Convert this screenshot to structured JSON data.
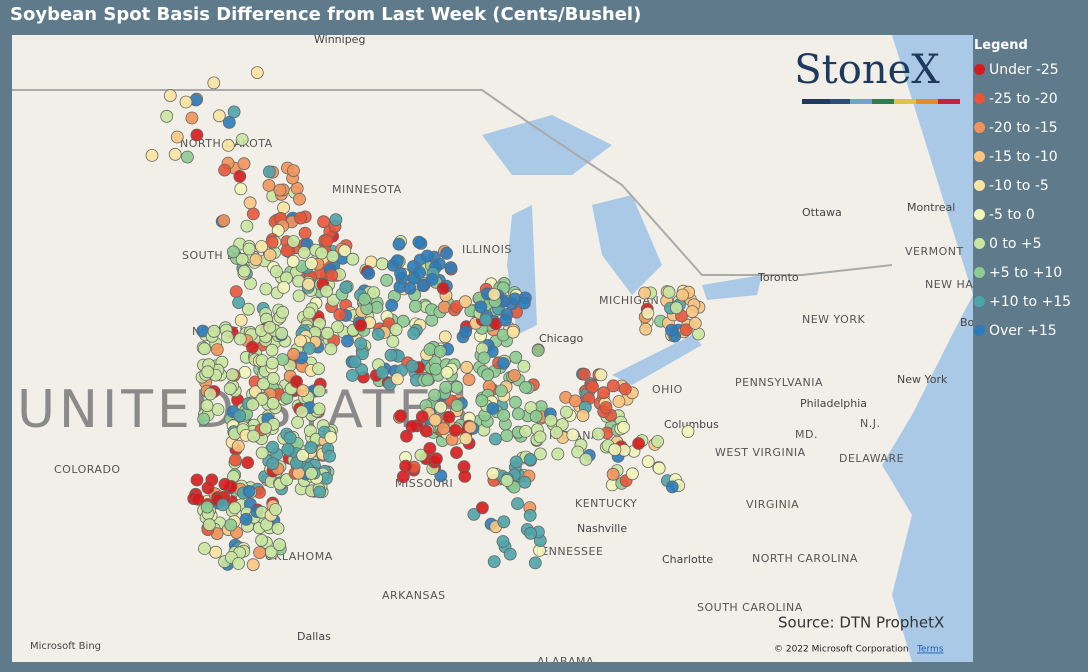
{
  "title": "Soybean Spot Basis Difference from Last Week (Cents/Bushel)",
  "legend": {
    "title": "Legend",
    "items": [
      {
        "label": "Under -25",
        "color": "#d7191c"
      },
      {
        "label": "-25 to -20",
        "color": "#e8553a"
      },
      {
        "label": "-20 to -15",
        "color": "#f2925a"
      },
      {
        "label": "-15 to -10",
        "color": "#f8c582"
      },
      {
        "label": "-10 to -5",
        "color": "#fbe3a2"
      },
      {
        "label": "-5 to 0",
        "color": "#f2f5b8"
      },
      {
        "label": "0 to +5",
        "color": "#c8e6a0"
      },
      {
        "label": "+5 to +10",
        "color": "#8ccb91"
      },
      {
        "label": "+10 to +15",
        "color": "#4fa4aa"
      },
      {
        "label": "Over +15",
        "color": "#2b7bba"
      }
    ]
  },
  "logo": "StoneX",
  "watermark": "UNITED STATES",
  "map_labels": [
    "Winnipeg",
    "NORTH DAKOTA",
    "MINNESOTA",
    "SOUTH DAKOTA",
    "NEBRASKA",
    "COLORADO",
    "MISSOURI",
    "OKLAHOMA",
    "ARKANSAS",
    "Dallas",
    "ALABAMA",
    "TENNESSEE",
    "Nashville",
    "KENTUCKY",
    "Chicago",
    "MICHIGAN",
    "Columbus",
    "WEST VIRGINIA",
    "VIRGINIA",
    "NORTH CAROLINA",
    "SOUTH CAROLINA",
    "Charlotte",
    "PENNSYLVANIA",
    "Philadelphia",
    "NEW YORK",
    "New York",
    "Ottawa",
    "Montreal",
    "VERMONT",
    "NEW HAMPSHIRE",
    "Boston",
    "MD.",
    "N.J.",
    "DELAWARE",
    "Toronto",
    "ILLINOIS",
    "INDIANA",
    "OHIO"
  ],
  "source": "Source: DTN ProphetX",
  "bing": "Microsoft Bing",
  "copyright": "© 2022 Microsoft Corporation",
  "terms": "Terms"
}
